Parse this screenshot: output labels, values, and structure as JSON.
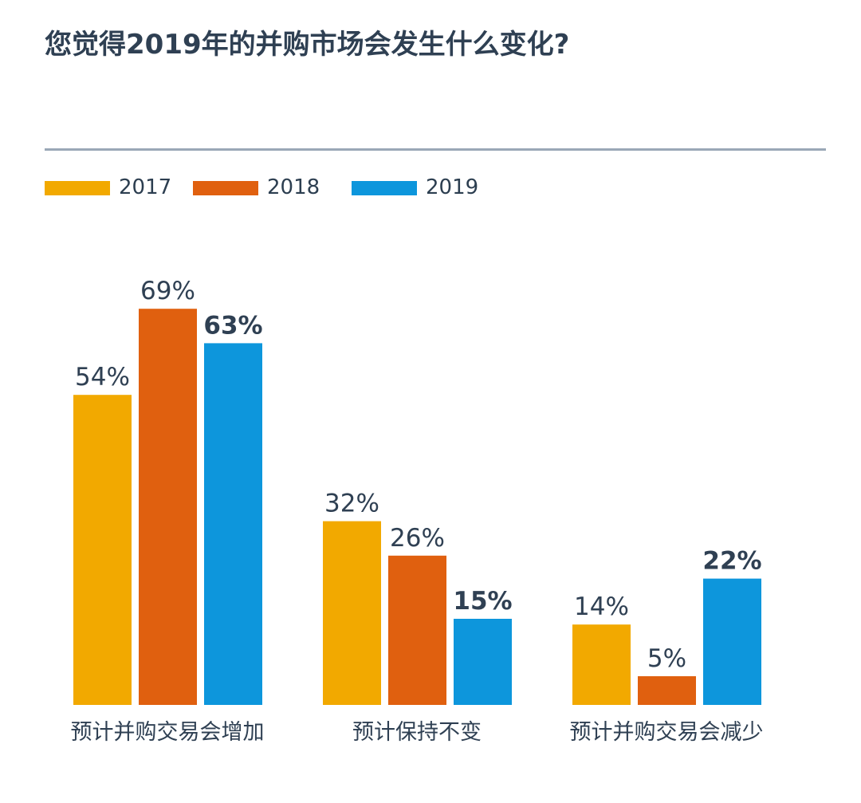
{
  "title": "您觉得2019年的并购市场会发生什么变化?",
  "legend": [
    {
      "label": "2017",
      "color": "#f2a900"
    },
    {
      "label": "2018",
      "color": "#e0600f"
    },
    {
      "label": "2019",
      "color": "#0d96dc"
    }
  ],
  "chart_data": {
    "type": "bar",
    "title": "您觉得2019年的并购市场会发生什么变化?",
    "xlabel": "",
    "ylabel": "",
    "ylim": [
      0,
      70
    ],
    "grid": false,
    "legend_position": "top-left",
    "categories": [
      "预计并购交易会增加",
      "预计保持不变",
      "预计并购交易会减少"
    ],
    "series": [
      {
        "name": "2017",
        "color": "#f2a900",
        "values": [
          54,
          32,
          14
        ],
        "labels": [
          "54%",
          "32%",
          "14%"
        ],
        "bold": false
      },
      {
        "name": "2018",
        "color": "#e0600f",
        "values": [
          69,
          26,
          5
        ],
        "labels": [
          "69%",
          "26%",
          "5%"
        ],
        "bold": false
      },
      {
        "name": "2019",
        "color": "#0d96dc",
        "values": [
          63,
          15,
          22
        ],
        "labels": [
          "63%",
          "15%",
          "22%"
        ],
        "bold": true
      }
    ]
  }
}
